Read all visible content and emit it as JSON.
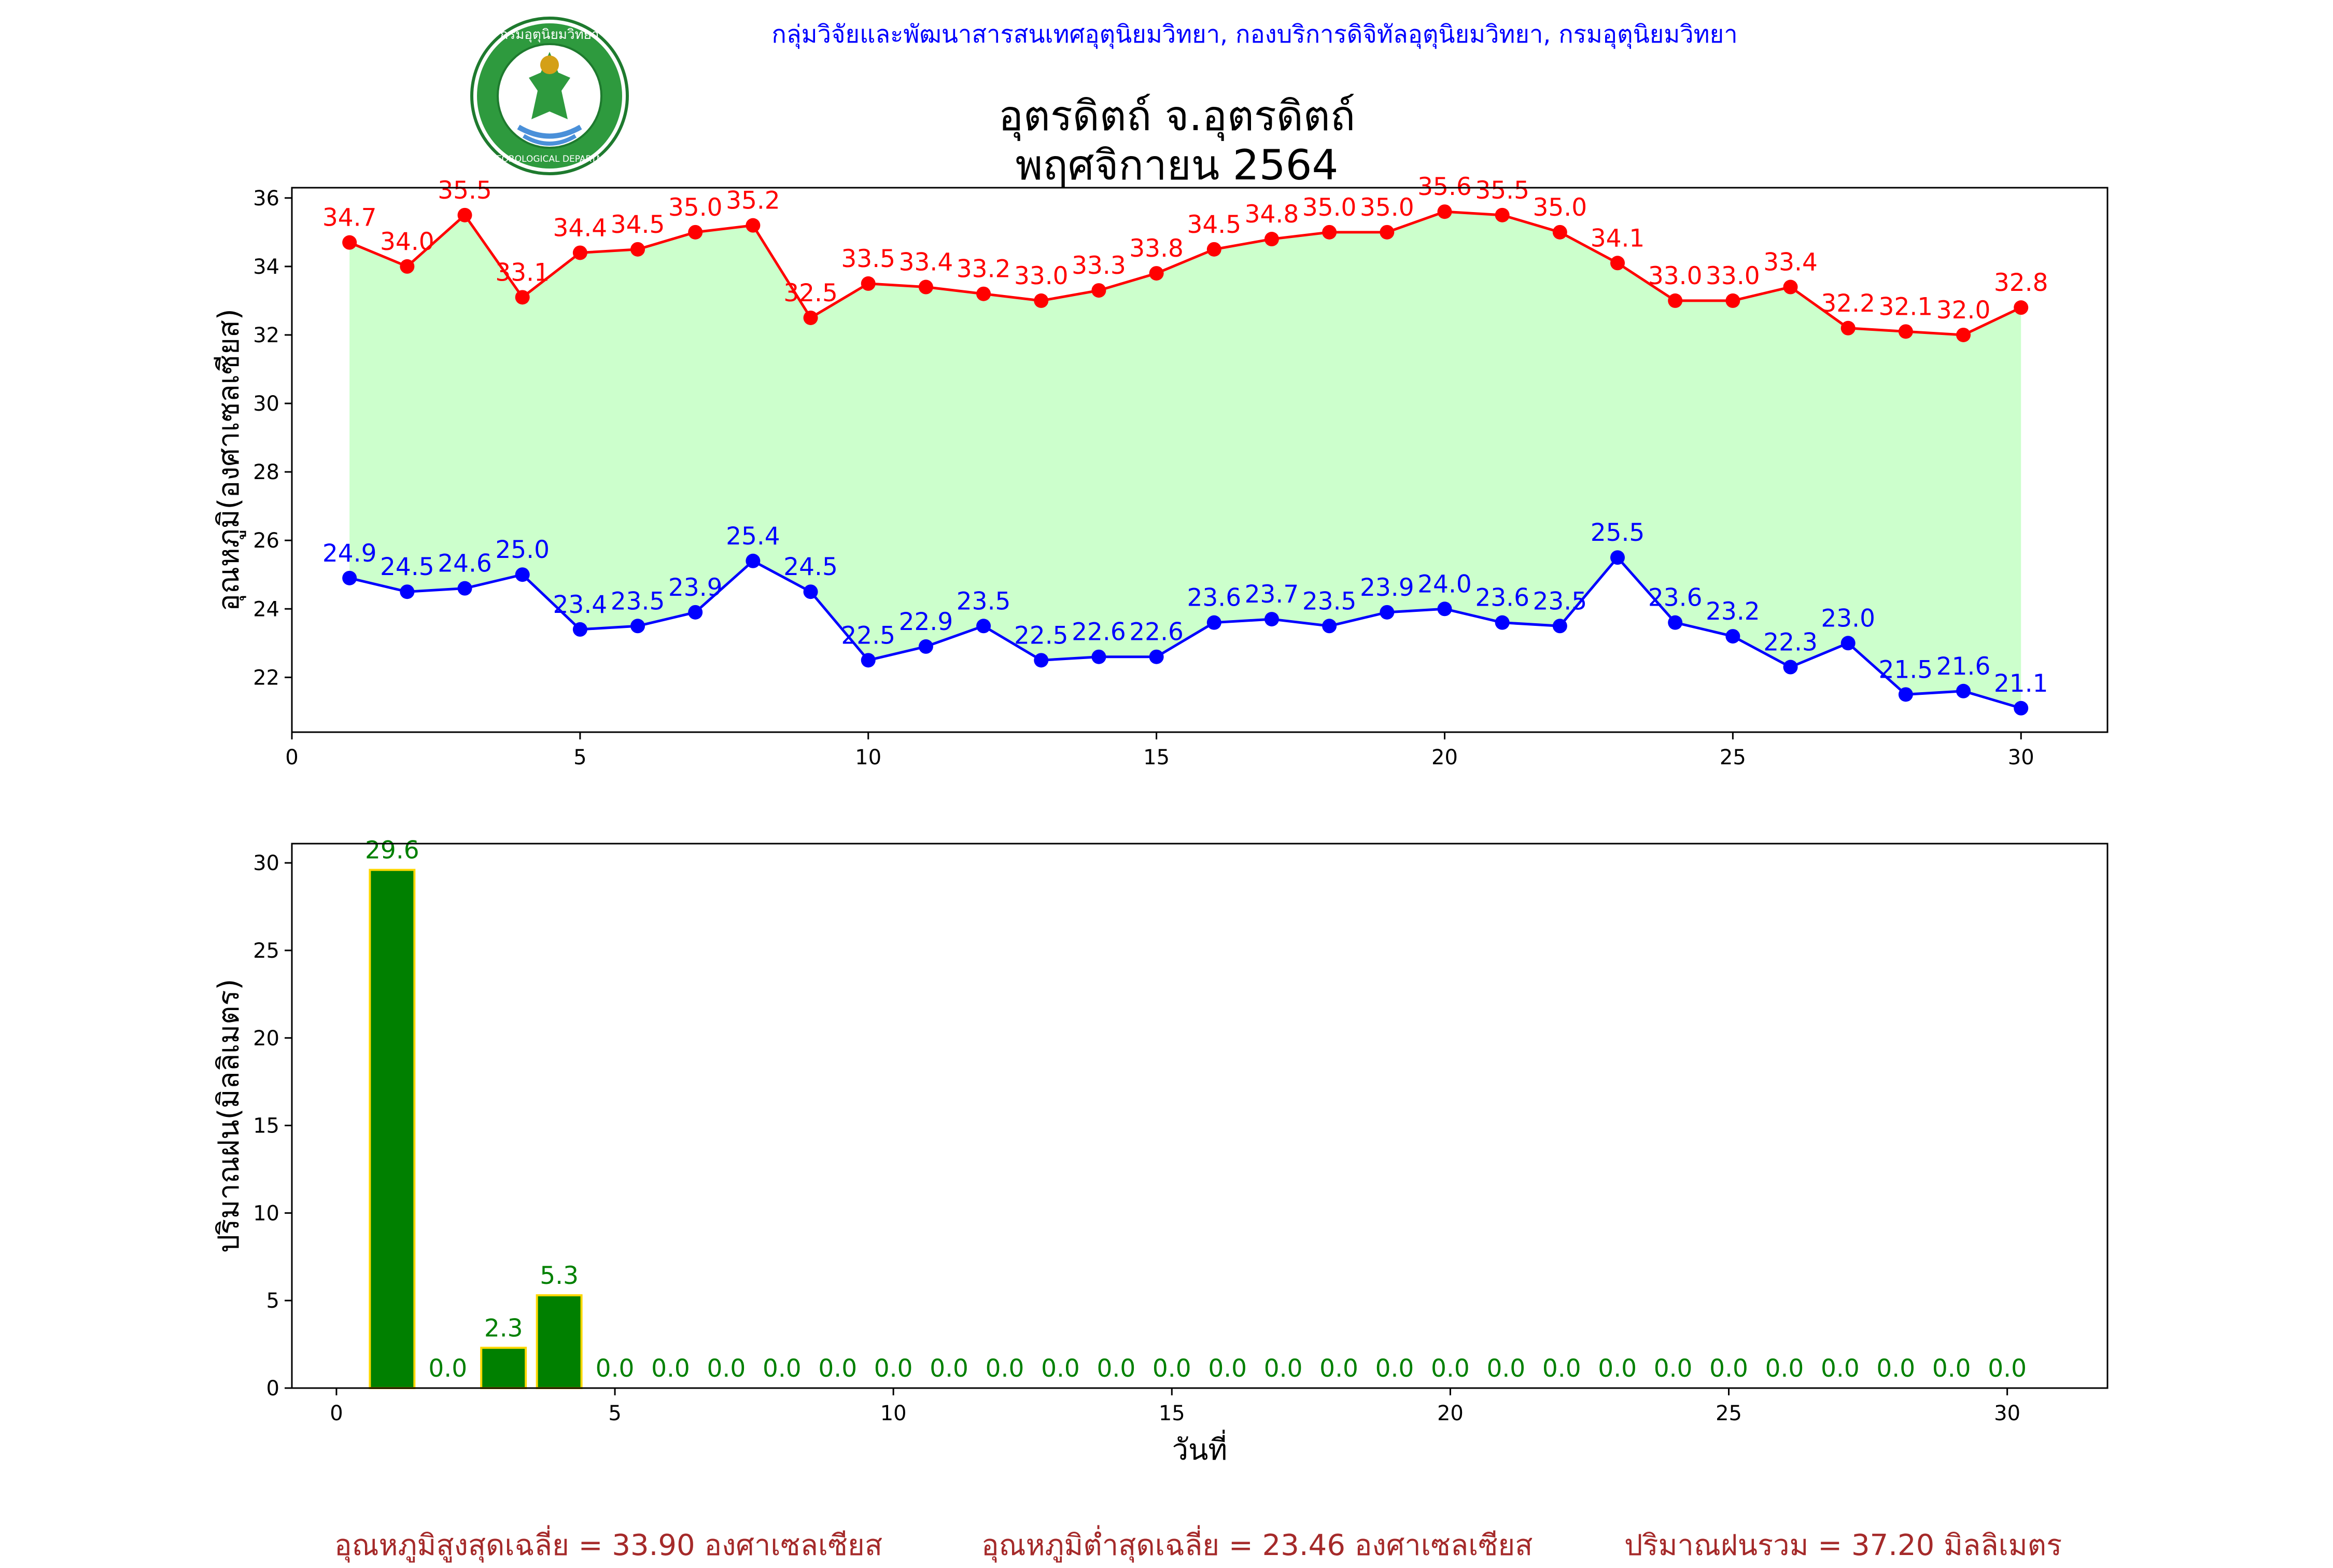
{
  "header": {
    "credit": "กลุ่มวิจัยและพัฒนาสารสนเทศอุตุนิยมวิทยา, กองบริการดิจิทัลอุตุนิยมวิทยา, กรมอุตุนิยมวิทยา",
    "title_line1": "อุตรดิตถ์ จ.อุตรดิตถ์",
    "title_line2": "พฤศจิกายน 2564",
    "logo_icon": "meteorological-department-seal-icon",
    "logo_text_top": "กรมอุตุนิยมวิทยา",
    "logo_text_bottom": "METEOROLOGICAL DEPARTMENT"
  },
  "colors": {
    "max_temp": "#ff0000",
    "min_temp": "#0000ff",
    "band_fill": "#ccffcc",
    "rain_bar": "#008000",
    "rain_bar_edge": "#ffd700",
    "rain_label": "#008000",
    "summary_text": "#a52a2a",
    "credit_text": "#0000ff"
  },
  "chart_data": [
    {
      "type": "line",
      "ylabel": "อุณหภูมิ(องศาเซลเซียส)",
      "xlim": [
        0,
        31.5
      ],
      "ylim": [
        20.4,
        36.3
      ],
      "xticks": [
        0,
        5,
        10,
        15,
        20,
        25,
        30
      ],
      "yticks": [
        22,
        24,
        26,
        28,
        30,
        32,
        34,
        36
      ],
      "grid": false,
      "fill_between": true,
      "x": [
        1,
        2,
        3,
        4,
        5,
        6,
        7,
        8,
        9,
        10,
        11,
        12,
        13,
        14,
        15,
        16,
        17,
        18,
        19,
        20,
        21,
        22,
        23,
        24,
        25,
        26,
        27,
        28,
        29,
        30
      ],
      "series": [
        {
          "key": "max",
          "values": [
            34.7,
            34.0,
            35.5,
            33.1,
            34.4,
            34.5,
            35.0,
            35.2,
            32.5,
            33.5,
            33.4,
            33.2,
            33.0,
            33.3,
            33.8,
            34.5,
            34.8,
            35.0,
            35.0,
            35.6,
            35.5,
            35.0,
            34.1,
            33.0,
            33.0,
            33.4,
            32.2,
            32.1,
            32.0,
            32.8
          ],
          "labels": [
            "34.7",
            "34.0",
            "35.5",
            "33.1",
            "34.4",
            "34.5",
            "35.0",
            "35.2",
            "32.5",
            "33.5",
            "33.4",
            "33.2",
            "33.0",
            "33.3",
            "33.8",
            "34.5",
            "34.8",
            "35.0",
            "35.0",
            "35.6",
            "35.5",
            "35.0",
            "34.1",
            "33.0",
            "33.0",
            "33.4",
            "32.2",
            "32.1",
            "32.0",
            "32.8"
          ]
        },
        {
          "key": "min",
          "values": [
            24.9,
            24.5,
            24.6,
            25.0,
            23.4,
            23.5,
            23.9,
            25.4,
            24.5,
            22.5,
            22.9,
            23.5,
            22.5,
            22.6,
            22.6,
            23.6,
            23.7,
            23.5,
            23.9,
            24.0,
            23.6,
            23.5,
            25.5,
            23.6,
            23.2,
            22.3,
            23.0,
            21.5,
            21.6,
            21.1
          ],
          "labels": [
            "24.9",
            "24.5",
            "24.6",
            "25.0",
            "23.4",
            "23.5",
            "23.9",
            "25.4",
            "24.5",
            "22.5",
            "22.9",
            "23.5",
            "22.5",
            "22.6",
            "22.6",
            "23.6",
            "23.7",
            "23.5",
            "23.9",
            "24.0",
            "23.6",
            "23.5",
            "25.5",
            "23.6",
            "23.2",
            "22.3",
            "23.0",
            "21.5",
            "21.6",
            "21.1"
          ]
        }
      ]
    },
    {
      "type": "bar",
      "xlabel": "วันที่",
      "ylabel": "ปริมาณฝน(มิลลิเมตร)",
      "xlim": [
        -0.8,
        31.8
      ],
      "ylim": [
        0,
        31.1
      ],
      "xticks": [
        0,
        5,
        10,
        15,
        20,
        25,
        30
      ],
      "yticks": [
        0,
        5,
        10,
        15,
        20,
        25,
        30
      ],
      "grid": false,
      "bar_width": 0.8,
      "x": [
        1,
        2,
        3,
        4,
        5,
        6,
        7,
        8,
        9,
        10,
        11,
        12,
        13,
        14,
        15,
        16,
        17,
        18,
        19,
        20,
        21,
        22,
        23,
        24,
        25,
        26,
        27,
        28,
        29,
        30
      ],
      "values": [
        29.6,
        0.0,
        2.3,
        5.3,
        0.0,
        0.0,
        0.0,
        0.0,
        0.0,
        0.0,
        0.0,
        0.0,
        0.0,
        0.0,
        0.0,
        0.0,
        0.0,
        0.0,
        0.0,
        0.0,
        0.0,
        0.0,
        0.0,
        0.0,
        0.0,
        0.0,
        0.0,
        0.0,
        0.0,
        0.0
      ],
      "labels": [
        "29.6",
        "0.0",
        "2.3",
        "5.3",
        "0.0",
        "0.0",
        "0.0",
        "0.0",
        "0.0",
        "0.0",
        "0.0",
        "0.0",
        "0.0",
        "0.0",
        "0.0",
        "0.0",
        "0.0",
        "0.0",
        "0.0",
        "0.0",
        "0.0",
        "0.0",
        "0.0",
        "0.0",
        "0.0",
        "0.0",
        "0.0",
        "0.0",
        "0.0",
        "0.0"
      ]
    }
  ],
  "summary": {
    "avg_max": "อุณหภูมิสูงสุดเฉลี่ย = 33.90 องศาเซลเซียส",
    "avg_min": "อุณหภูมิต่ำสุดเฉลี่ย = 23.46 องศาเซลเซียส",
    "total_rain": "ปริมาณฝนรวม = 37.20 มิลลิเมตร"
  }
}
